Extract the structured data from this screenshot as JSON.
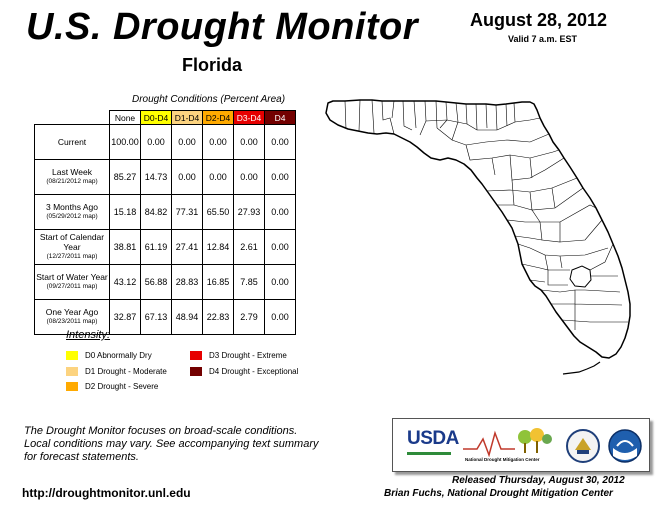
{
  "header": {
    "title": "U.S. Drought Monitor",
    "state": "Florida",
    "date": "August 28, 2012",
    "valid": "Valid 7 a.m. EST"
  },
  "table": {
    "caption": "Drought Conditions (Percent Area)",
    "columns": [
      "None",
      "D0-D4",
      "D1-D4",
      "D2-D4",
      "D3-D4",
      "D4"
    ],
    "column_colors": [
      "#ffffff",
      "#ffff00",
      "#fcd37f",
      "#ffaa00",
      "#e60000",
      "#730000"
    ],
    "rows": [
      {
        "label": "Current",
        "sub": "",
        "values": [
          "100.00",
          "0.00",
          "0.00",
          "0.00",
          "0.00",
          "0.00"
        ]
      },
      {
        "label": "Last Week",
        "sub": "(08/21/2012 map)",
        "values": [
          "85.27",
          "14.73",
          "0.00",
          "0.00",
          "0.00",
          "0.00"
        ]
      },
      {
        "label": "3 Months Ago",
        "sub": "(05/29/2012 map)",
        "values": [
          "15.18",
          "84.82",
          "77.31",
          "65.50",
          "27.93",
          "0.00"
        ]
      },
      {
        "label": "Start of Calendar Year",
        "sub": "(12/27/2011 map)",
        "values": [
          "38.81",
          "61.19",
          "27.41",
          "12.84",
          "2.61",
          "0.00"
        ]
      },
      {
        "label": "Start of Water Year",
        "sub": "(09/27/2011 map)",
        "values": [
          "43.12",
          "56.88",
          "28.83",
          "16.85",
          "7.85",
          "0.00"
        ]
      },
      {
        "label": "One Year Ago",
        "sub": "(08/23/2011 map)",
        "values": [
          "32.87",
          "67.13",
          "48.94",
          "22.83",
          "2.79",
          "0.00"
        ]
      }
    ]
  },
  "legend": {
    "title": "Intensity:",
    "items": [
      {
        "label": "D0 Abnormally Dry",
        "color": "#ffff00"
      },
      {
        "label": "D1 Drought - Moderate",
        "color": "#fcd37f"
      },
      {
        "label": "D2 Drought - Severe",
        "color": "#ffaa00"
      },
      {
        "label": "D3 Drought - Extreme",
        "color": "#e60000"
      },
      {
        "label": "D4 Drought - Exceptional",
        "color": "#730000"
      }
    ]
  },
  "footer": {
    "note_line1": "The Drought Monitor focuses on broad-scale conditions.",
    "note_line2": "Local conditions may vary. See accompanying text summary",
    "note_line3": "for forecast statements.",
    "url": "http://droughtmonitor.unl.edu",
    "released": "Released Thursday, August 30, 2012",
    "author": "Brian Fuchs, National Drought Mitigation Center"
  },
  "logos": {
    "usda": "USDA",
    "ndmc": "National Drought Mitigation Center"
  }
}
